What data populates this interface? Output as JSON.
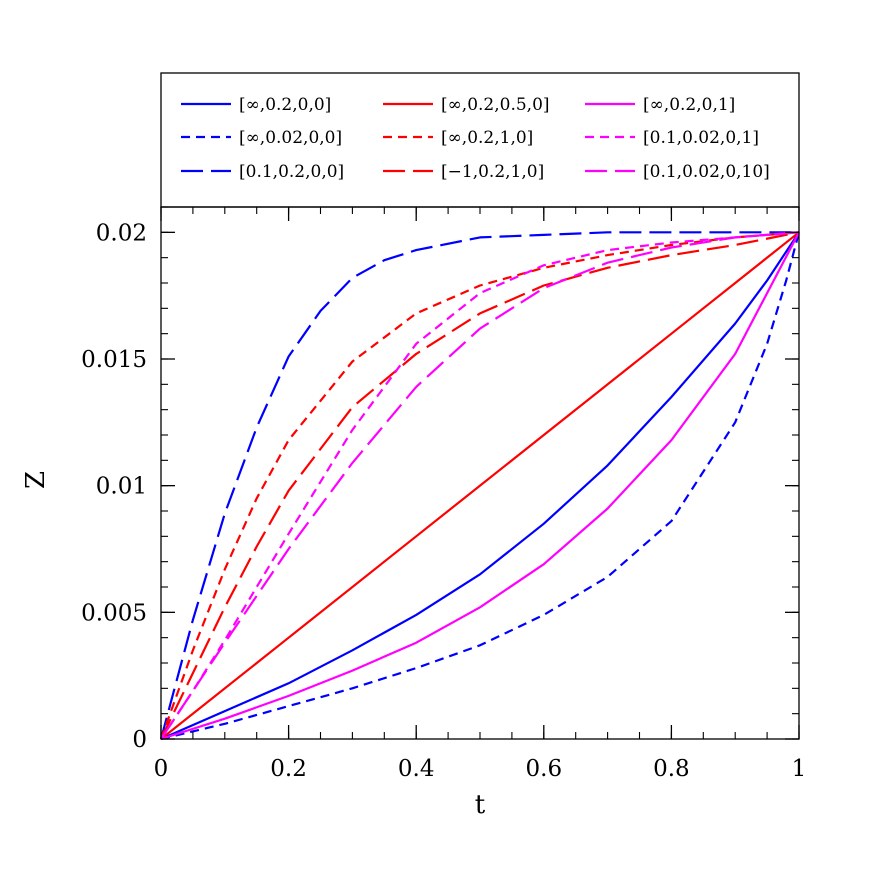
{
  "chart_data": {
    "type": "line",
    "xlabel": "t",
    "ylabel": "Z",
    "xlim": [
      0,
      1
    ],
    "ylim": [
      0,
      0.021
    ],
    "x_ticks": [
      0,
      0.2,
      0.4,
      0.6,
      0.8,
      1
    ],
    "x_tick_labels": [
      "0",
      "0.2",
      "0.4",
      "0.6",
      "0.8",
      "1"
    ],
    "y_ticks": [
      0,
      0.005,
      0.01,
      0.015,
      0.02
    ],
    "y_tick_labels": [
      "0",
      "0.005",
      "0.01",
      "0.015",
      "0.02"
    ],
    "legend_position": "top, above plot, 3 columns",
    "grid": false,
    "series": [
      {
        "name": "[∞,0.2,0,0]",
        "color": "#0000ff",
        "dash": "solid",
        "x": [
          0,
          0.1,
          0.2,
          0.3,
          0.4,
          0.5,
          0.6,
          0.7,
          0.8,
          0.9,
          0.95,
          1
        ],
        "y": [
          0,
          0.0011,
          0.0022,
          0.0035,
          0.0049,
          0.0065,
          0.0085,
          0.0108,
          0.0135,
          0.0164,
          0.0181,
          0.02
        ]
      },
      {
        "name": "[∞,0.02,0,0]",
        "color": "#0000ff",
        "dash": "short",
        "x": [
          0,
          0.1,
          0.2,
          0.3,
          0.4,
          0.5,
          0.6,
          0.7,
          0.8,
          0.9,
          0.95,
          0.98,
          1
        ],
        "y": [
          0,
          0.0006,
          0.0013,
          0.002,
          0.0028,
          0.0037,
          0.0049,
          0.0064,
          0.0086,
          0.0125,
          0.0156,
          0.0181,
          0.02
        ]
      },
      {
        "name": "[0.1,0.2,0,0]",
        "color": "#0000ff",
        "dash": "long",
        "x": [
          0,
          0.05,
          0.1,
          0.15,
          0.2,
          0.25,
          0.3,
          0.35,
          0.4,
          0.5,
          0.6,
          0.7,
          0.8,
          0.9,
          1
        ],
        "y": [
          0,
          0.0047,
          0.0089,
          0.0123,
          0.0151,
          0.0169,
          0.0182,
          0.0189,
          0.0193,
          0.0198,
          0.0199,
          0.02,
          0.02,
          0.02,
          0.02
        ]
      },
      {
        "name": "[∞,0.2,0.5,0]",
        "color": "#ff0000",
        "dash": "solid",
        "x": [
          0,
          0.2,
          0.4,
          0.6,
          0.8,
          1
        ],
        "y": [
          0,
          0.004,
          0.008,
          0.012,
          0.016,
          0.02
        ]
      },
      {
        "name": "[∞,0.2,1,0]",
        "color": "#ff0000",
        "dash": "short",
        "x": [
          0,
          0.05,
          0.1,
          0.15,
          0.2,
          0.3,
          0.4,
          0.5,
          0.6,
          0.7,
          0.8,
          0.9,
          1
        ],
        "y": [
          0,
          0.0035,
          0.0067,
          0.0095,
          0.0118,
          0.0149,
          0.0168,
          0.0179,
          0.0186,
          0.0191,
          0.0195,
          0.0198,
          0.02
        ]
      },
      {
        "name": "[−1,0.2,1,0]",
        "color": "#ff0000",
        "dash": "long",
        "x": [
          0,
          0.05,
          0.1,
          0.15,
          0.2,
          0.3,
          0.4,
          0.5,
          0.6,
          0.7,
          0.8,
          0.9,
          1
        ],
        "y": [
          0,
          0.0026,
          0.0052,
          0.0076,
          0.0098,
          0.0131,
          0.0152,
          0.0168,
          0.0179,
          0.0186,
          0.0191,
          0.0195,
          0.02
        ]
      },
      {
        "name": "[∞,0.2,0,1]",
        "color": "#ff00ff",
        "dash": "solid",
        "x": [
          0,
          0.1,
          0.2,
          0.3,
          0.4,
          0.5,
          0.6,
          0.7,
          0.8,
          0.9,
          1
        ],
        "y": [
          0,
          0.0008,
          0.0017,
          0.0027,
          0.0038,
          0.0052,
          0.0069,
          0.0091,
          0.0118,
          0.0152,
          0.02
        ]
      },
      {
        "name": "[0.1,0.02,0,1]",
        "color": "#ff00ff",
        "dash": "short",
        "x": [
          0,
          0.05,
          0.1,
          0.2,
          0.3,
          0.4,
          0.5,
          0.6,
          0.7,
          0.8,
          0.9,
          1
        ],
        "y": [
          0,
          0.0019,
          0.0039,
          0.0081,
          0.0122,
          0.0156,
          0.0176,
          0.0187,
          0.0193,
          0.0196,
          0.0198,
          0.02
        ]
      },
      {
        "name": "[0.1,0.02,0,10]",
        "color": "#ff00ff",
        "dash": "long",
        "x": [
          0,
          0.05,
          0.1,
          0.2,
          0.3,
          0.4,
          0.5,
          0.6,
          0.7,
          0.8,
          0.9,
          1
        ],
        "y": [
          0,
          0.0019,
          0.0038,
          0.0075,
          0.0109,
          0.0139,
          0.0162,
          0.0178,
          0.0188,
          0.0194,
          0.0198,
          0.02
        ]
      }
    ]
  }
}
